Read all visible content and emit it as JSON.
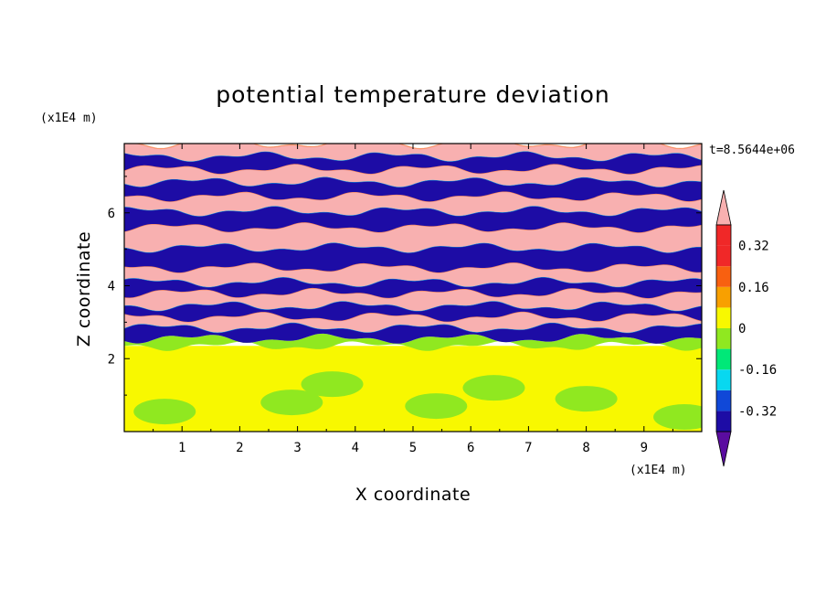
{
  "chart_data": {
    "type": "heatmap",
    "title": "potential temperature deviation",
    "xlabel": "X coordinate",
    "ylabel": "Z coordinate",
    "x_unit": "(x1E4 m)",
    "y_unit": "(x1E4 m)",
    "time_label": "t=8.5644e+06",
    "xlim": [
      0,
      10
    ],
    "ylim": [
      0,
      7.9
    ],
    "x_ticks": [
      1,
      2,
      3,
      4,
      5,
      6,
      7,
      8,
      9
    ],
    "y_ticks": [
      2,
      4,
      6
    ],
    "grid": false,
    "colorbar": {
      "ticks": [
        "0.32",
        "0.16",
        "0",
        "-0.16",
        "-0.32"
      ],
      "tick_values": [
        0.32,
        0.16,
        0,
        -0.16,
        -0.32
      ],
      "levels": [
        -0.4,
        -0.32,
        -0.24,
        -0.16,
        -0.08,
        0,
        0.08,
        0.16,
        0.24,
        0.32,
        0.4
      ],
      "colors_low_to_high": [
        "#5a0ca0",
        "#1d0ca5",
        "#1048d8",
        "#08d8f0",
        "#00e878",
        "#90e820",
        "#f8f800",
        "#f8a000",
        "#f86010",
        "#f02828",
        "#f8b0b0"
      ],
      "extend": "both"
    },
    "layers": [
      {
        "z": [
          0.0,
          2.35
        ],
        "value": 0.04,
        "patches": [
          {
            "x": 0.7,
            "z": 0.55,
            "value": -0.04
          },
          {
            "x": 2.9,
            "z": 0.8,
            "value": -0.04
          },
          {
            "x": 3.6,
            "z": 1.3,
            "value": -0.04
          },
          {
            "x": 5.4,
            "z": 0.7,
            "value": -0.04
          },
          {
            "x": 6.4,
            "z": 1.2,
            "value": -0.04
          },
          {
            "x": 8.0,
            "z": 0.9,
            "value": -0.04
          },
          {
            "x": 9.7,
            "z": 0.4,
            "value": -0.04
          }
        ]
      },
      {
        "z": [
          2.35,
          2.55
        ],
        "value": -0.04
      },
      {
        "z": [
          2.55,
          2.85
        ],
        "value": -0.36
      },
      {
        "z": [
          2.85,
          3.15
        ],
        "value": 0.36
      },
      {
        "z": [
          3.15,
          3.45
        ],
        "value": -0.36
      },
      {
        "z": [
          3.45,
          3.8
        ],
        "value": 0.36
      },
      {
        "z": [
          3.8,
          4.1
        ],
        "value": -0.36
      },
      {
        "z": [
          4.1,
          4.5
        ],
        "value": 0.36
      },
      {
        "z": [
          4.5,
          5.05
        ],
        "value": -0.36
      },
      {
        "z": [
          5.05,
          5.6
        ],
        "value": 0.36
      },
      {
        "z": [
          5.6,
          6.05
        ],
        "value": -0.36
      },
      {
        "z": [
          6.05,
          6.45
        ],
        "value": 0.36
      },
      {
        "z": [
          6.45,
          6.85
        ],
        "value": -0.36
      },
      {
        "z": [
          6.85,
          7.2
        ],
        "value": 0.36
      },
      {
        "z": [
          7.2,
          7.55
        ],
        "value": -0.36
      },
      {
        "z": [
          7.55,
          7.9
        ],
        "value": 0.36
      }
    ]
  }
}
